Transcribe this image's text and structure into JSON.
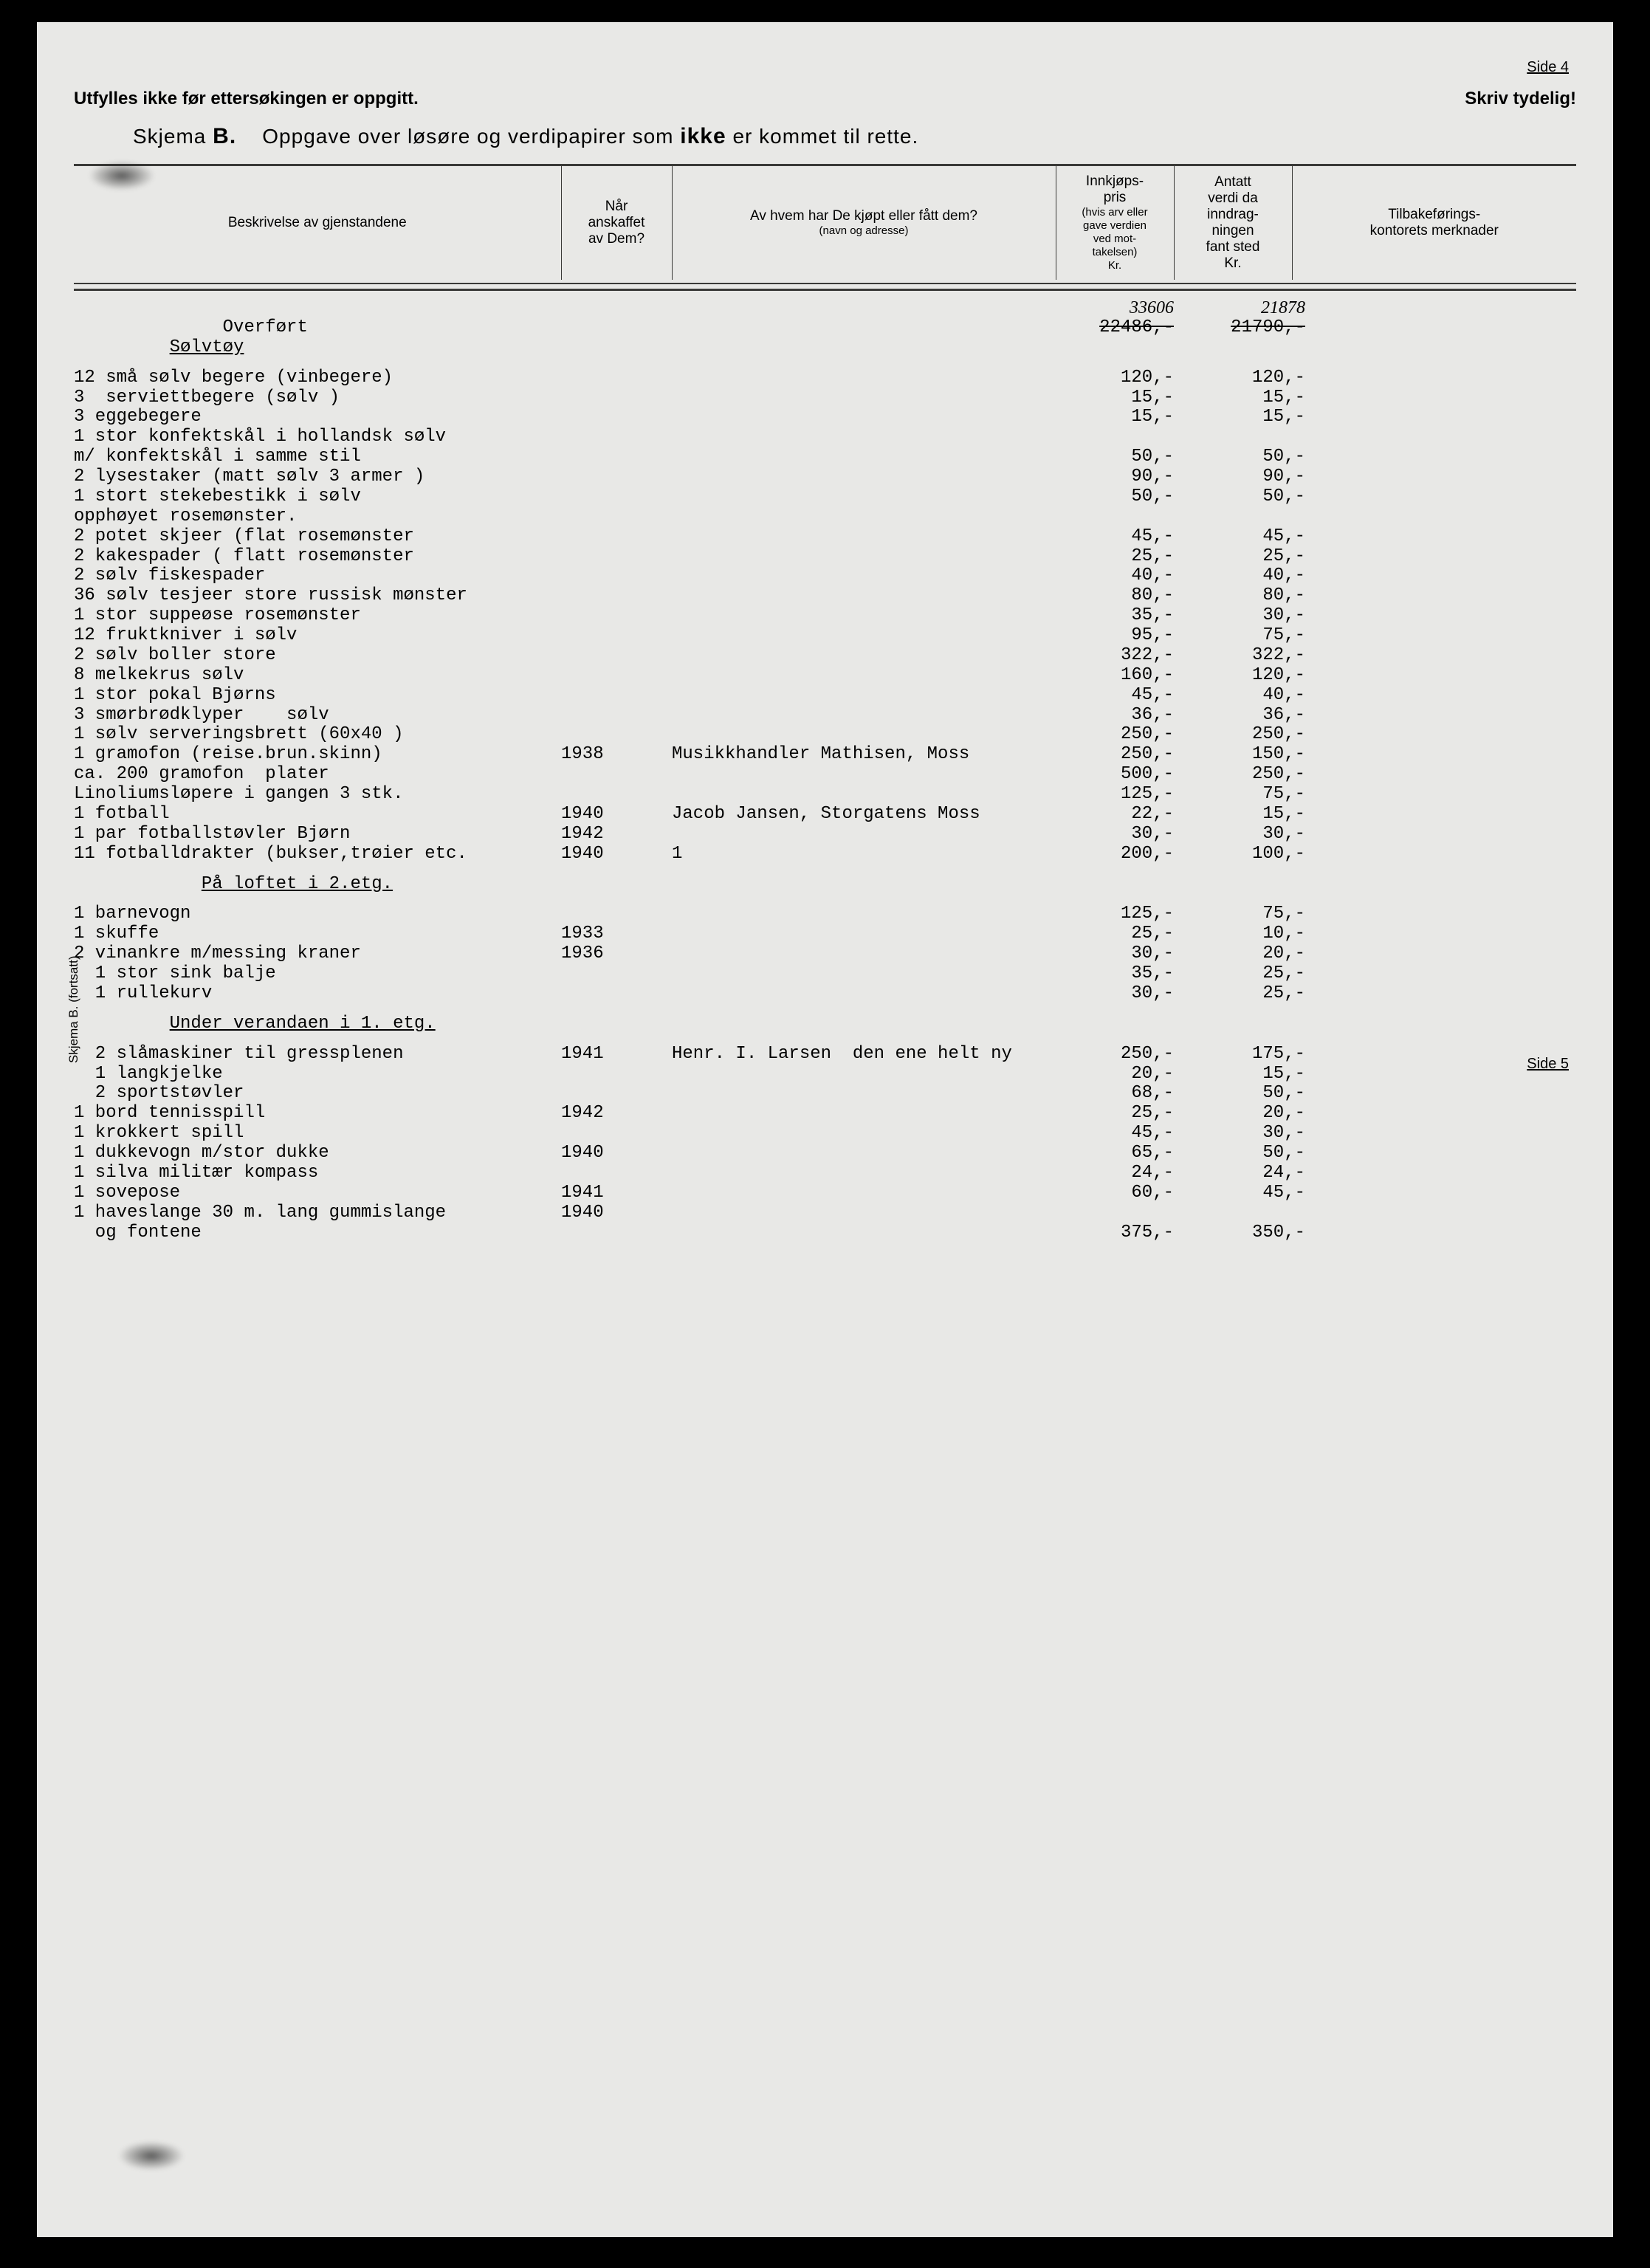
{
  "page_top": "Side 4",
  "page_side": "Side 5",
  "instr_left": "Utfylles ikke før ettersøkingen er oppgitt.",
  "instr_right": "Skriv tydelig!",
  "title_pre": "Skjema",
  "title_b": "B.",
  "title_mid": "Oppgave over løsøre og verdipapirer som",
  "title_ikke": "ikke",
  "title_post": "er kommet til rette.",
  "headers": {
    "desc": "Beskrivelse av gjenstandene",
    "when": "Når\nanskaffet\nav Dem?",
    "from": "Av hvem har De kjøpt eller fått dem?",
    "from_sub": "(navn og adresse)",
    "p1": "Innkjøps-\npris",
    "p1_sub": "(hvis arv eller\ngave verdien\nved mot-\ntakelsen)\nKr.",
    "p2": "Antatt\nverdi da\ninndrag-\nningen\nfant sted\nKr.",
    "note": "Tilbakeførings-\nkontorets merknader"
  },
  "vertical_label": "Skjema B. (fortsatt)",
  "overfort": {
    "label": "Overført",
    "p1_hand": "33606",
    "p2_hand": "21878",
    "p1_strike": "22486,-",
    "p2_strike": "21790,-"
  },
  "sections": {
    "solvtoy": "Sølvtøy",
    "loft": "På loftet i 2.etg.",
    "veranda": "Under verandaen i 1. etg."
  },
  "rows": [
    {
      "desc": "12 små sølv begere (vinbegere)",
      "when": "",
      "from": "",
      "p1": "120,-",
      "p2": "120,-"
    },
    {
      "desc": "3  serviettbegere (sølv )",
      "when": "",
      "from": "",
      "p1": "15,-",
      "p2": "15,-"
    },
    {
      "desc": "3 eggebegere",
      "when": "",
      "from": "",
      "p1": "15,-",
      "p2": "15,-"
    },
    {
      "desc": "1 stor konfektskål i hollandsk sølv",
      "when": "",
      "from": "",
      "p1": "",
      "p2": ""
    },
    {
      "desc": "m/ konfektskål i samme stil",
      "when": "",
      "from": "",
      "p1": "50,-",
      "p2": "50,-"
    },
    {
      "desc": "2 lysestaker (matt sølv 3 armer )",
      "when": "",
      "from": "",
      "p1": "90,-",
      "p2": "90,-"
    },
    {
      "desc": "1 stort stekebestikk i sølv",
      "when": "",
      "from": "",
      "p1": "50,-",
      "p2": "50,-"
    },
    {
      "desc": "opphøyet rosemønster.",
      "when": "",
      "from": "",
      "p1": "",
      "p2": ""
    },
    {
      "desc": "2 potet skjeer (flat rosemønster",
      "when": "",
      "from": "",
      "p1": "45,-",
      "p2": "45,-"
    },
    {
      "desc": "2 kakespader ( flatt rosemønster",
      "when": "",
      "from": "",
      "p1": "25,-",
      "p2": "25,-"
    },
    {
      "desc": "2 sølv fiskespader",
      "when": "",
      "from": "",
      "p1": "40,-",
      "p2": "40,-"
    },
    {
      "desc": "36 sølv tesjeer store russisk mønster",
      "when": "",
      "from": "",
      "p1": "80,-",
      "p2": "80,-"
    },
    {
      "desc": "1 stor suppeøse rosemønster",
      "when": "",
      "from": "",
      "p1": "35,-",
      "p2": "30,-"
    },
    {
      "desc": "12 fruktkniver i sølv",
      "when": "",
      "from": "",
      "p1": "95,-",
      "p2": "75,-"
    },
    {
      "desc": "2 sølv boller store",
      "when": "",
      "from": "",
      "p1": "322,-",
      "p2": "322,-"
    },
    {
      "desc": "8 melkekrus sølv",
      "when": "",
      "from": "",
      "p1": "160,-",
      "p2": "120,-"
    },
    {
      "desc": "1 stor pokal Bjørns",
      "when": "",
      "from": "",
      "p1": "45,-",
      "p2": "40,-"
    },
    {
      "desc": "3 smørbrødklyper    sølv",
      "when": "",
      "from": "",
      "p1": "36,-",
      "p2": "36,-"
    },
    {
      "desc": "1 sølv serveringsbrett (60x40 )",
      "when": "",
      "from": "",
      "p1": "250,-",
      "p2": "250,-"
    },
    {
      "desc": "1 gramofon (reise.brun.skinn)",
      "when": "1938",
      "from": "Musikkhandler Mathisen, Moss",
      "p1": "250,-",
      "p2": "150,-"
    },
    {
      "desc": "ca. 200 gramofon  plater",
      "when": "",
      "from": "",
      "p1": "500,-",
      "p2": "250,-"
    },
    {
      "desc": "Linoliumsløpere i gangen 3 stk.",
      "when": "",
      "from": "",
      "p1": "125,-",
      "p2": "75,-"
    },
    {
      "desc": "1 fotball",
      "when": "1940",
      "from": "Jacob Jansen, Storgatens Moss",
      "p1": "22,-",
      "p2": "15,-"
    },
    {
      "desc": "1 par fotballstøvler Bjørn",
      "when": "1942",
      "from": "",
      "p1": "30,-",
      "p2": "30,-"
    },
    {
      "desc": "11 fotballdrakter (bukser,trøier etc.",
      "when": "1940",
      "from": "1",
      "p1": "200,-",
      "p2": "100,-"
    }
  ],
  "rows_loft": [
    {
      "desc": "1 barnevogn",
      "when": "",
      "from": "",
      "p1": "125,-",
      "p2": "75,-"
    },
    {
      "desc": "1 skuffe",
      "when": "1933",
      "from": "",
      "p1": "25,-",
      "p2": "10,-"
    },
    {
      "desc": "2 vinankre m/messing kraner",
      "when": "1936",
      "from": "",
      "p1": "30,-",
      "p2": "20,-"
    },
    {
      "desc": "  1 stor sink balje",
      "when": "",
      "from": "",
      "p1": "35,-",
      "p2": "25,-"
    },
    {
      "desc": "  1 rullekurv",
      "when": "",
      "from": "",
      "p1": "30,-",
      "p2": "25,-"
    }
  ],
  "rows_veranda": [
    {
      "desc": "  2 slåmaskiner til gressplenen",
      "when": "1941",
      "from": "Henr. I. Larsen  den ene helt ny",
      "p1": "250,-",
      "p2": "175,-"
    },
    {
      "desc": "  1 langkjelke",
      "when": "",
      "from": "",
      "p1": "20,-",
      "p2": "15,-"
    },
    {
      "desc": "  2 sportstøvler",
      "when": "",
      "from": "",
      "p1": "68,-",
      "p2": "50,-"
    },
    {
      "desc": "1 bord tennisspill",
      "when": "1942",
      "from": "",
      "p1": "25,-",
      "p2": "20,-"
    },
    {
      "desc": "1 krokkert spill",
      "when": "",
      "from": "",
      "p1": "45,-",
      "p2": "30,-"
    },
    {
      "desc": "1 dukkevogn m/stor dukke",
      "when": "1940",
      "from": "",
      "p1": "65,-",
      "p2": "50,-"
    },
    {
      "desc": "1 silva militær kompass",
      "when": "",
      "from": "",
      "p1": "24,-",
      "p2": "24,-"
    },
    {
      "desc": "1 sovepose",
      "when": "1941",
      "from": "",
      "p1": "60,-",
      "p2": "45,-"
    },
    {
      "desc": "1 haveslange 30 m. lang gummislange",
      "when": "1940",
      "from": "",
      "p1": "",
      "p2": ""
    },
    {
      "desc": "  og fontene",
      "when": "",
      "from": "",
      "p1": "375,-",
      "p2": "350,-"
    }
  ]
}
